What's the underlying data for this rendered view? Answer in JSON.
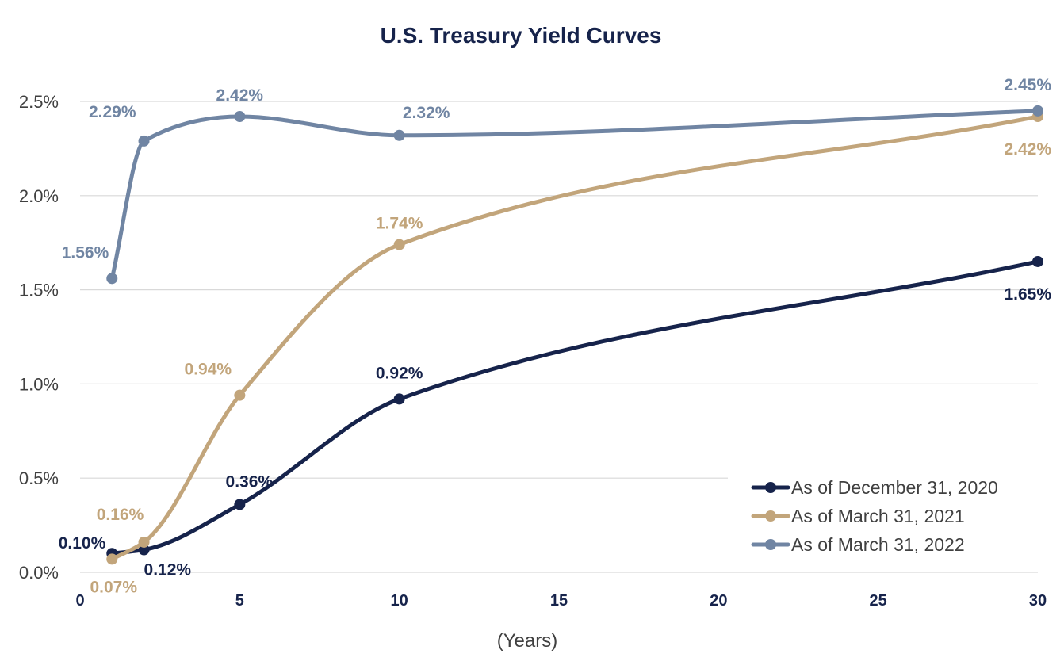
{
  "chart_data": {
    "type": "line",
    "title": "U.S. Treasury Yield Curves",
    "xlabel": "(Years)",
    "ylabel": "",
    "xlim": [
      0,
      30
    ],
    "ylim": [
      0,
      2.5
    ],
    "xticks": [
      0,
      5,
      10,
      15,
      20,
      25,
      30
    ],
    "xtick_labels": [
      "0",
      "5",
      "10",
      "15",
      "20",
      "25",
      "30"
    ],
    "yticks": [
      0,
      0.5,
      1.0,
      1.5,
      2.0,
      2.5
    ],
    "ytick_labels": [
      "0.0%",
      "0.5%",
      "1.0%",
      "1.5%",
      "2.0%",
      "2.5%"
    ],
    "grid": "horizontal",
    "legend_position": "bottom-right",
    "series": [
      {
        "name": "As of December 31, 2020",
        "color": "#16234b",
        "x": [
          1,
          2,
          5,
          10,
          30
        ],
        "y": [
          0.1,
          0.12,
          0.36,
          0.92,
          1.65
        ],
        "labels": [
          "0.10%",
          "0.12%",
          "0.36%",
          "0.92%",
          "1.65%"
        ]
      },
      {
        "name": "As of March 31, 2021",
        "color": "#c2a57b",
        "x": [
          1,
          2,
          5,
          10,
          30
        ],
        "y": [
          0.07,
          0.16,
          0.94,
          1.74,
          2.42
        ],
        "labels": [
          "0.07%",
          "0.16%",
          "0.94%",
          "1.74%",
          "2.42%"
        ]
      },
      {
        "name": "As of March 31, 2022",
        "color": "#7085a3",
        "x": [
          1,
          2,
          5,
          10,
          30
        ],
        "y": [
          1.56,
          2.29,
          2.42,
          2.32,
          2.45
        ],
        "labels": [
          "1.56%",
          "2.29%",
          "2.42%",
          "2.32%",
          "2.45%"
        ]
      }
    ]
  }
}
